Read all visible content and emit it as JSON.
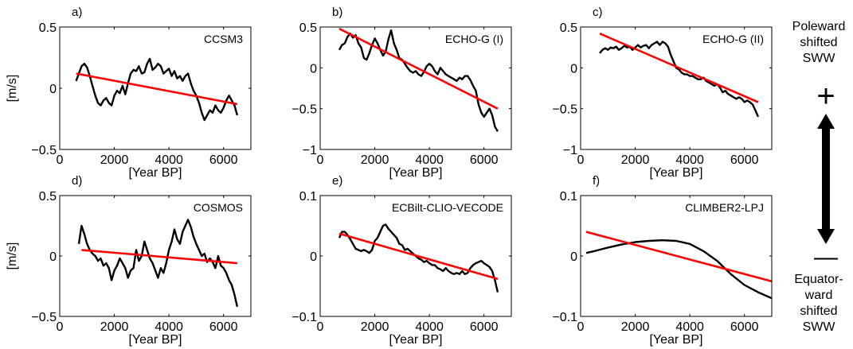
{
  "chart_data": [
    {
      "panel": "a)",
      "title": "CCSM3",
      "type": "line",
      "ylabel": "[m/s]",
      "xlabel": "[Year BP]",
      "xlim": [
        0,
        7000
      ],
      "ylim": [
        -0.5,
        0.5
      ],
      "xticks": [
        0,
        2000,
        4000,
        6000
      ],
      "yticks": [
        -0.5,
        0,
        0.5
      ],
      "xtick_labels": [
        "0",
        "2000",
        "4000",
        "6000"
      ],
      "ytick_labels": [
        "−0.5",
        "0",
        "0.5"
      ],
      "series": [
        {
          "color": "#000000",
          "x": [
            600,
            700,
            800,
            900,
            1000,
            1100,
            1200,
            1300,
            1400,
            1500,
            1600,
            1700,
            1800,
            1900,
            2000,
            2100,
            2200,
            2300,
            2400,
            2500,
            2600,
            2700,
            2800,
            2900,
            3000,
            3100,
            3200,
            3300,
            3400,
            3500,
            3600,
            3700,
            3800,
            3900,
            4000,
            4100,
            4200,
            4300,
            4400,
            4500,
            4600,
            4700,
            4800,
            4900,
            5000,
            5100,
            5200,
            5300,
            5400,
            5500,
            5600,
            5700,
            5800,
            5900,
            6000,
            6100,
            6200,
            6300,
            6400,
            6500
          ],
          "y": [
            0.06,
            0.12,
            0.18,
            0.2,
            0.17,
            0.1,
            0.02,
            -0.06,
            -0.12,
            -0.14,
            -0.1,
            -0.08,
            -0.12,
            -0.14,
            -0.06,
            -0.02,
            -0.04,
            0.02,
            -0.05,
            0.04,
            0.12,
            0.15,
            0.14,
            0.18,
            0.12,
            0.13,
            0.2,
            0.24,
            0.15,
            0.17,
            0.2,
            0.18,
            0.12,
            0.14,
            0.16,
            0.1,
            0.14,
            0.08,
            0.1,
            0.06,
            0.1,
            0.12,
            0.04,
            -0.02,
            -0.06,
            -0.12,
            -0.2,
            -0.26,
            -0.22,
            -0.18,
            -0.2,
            -0.14,
            -0.18,
            -0.2,
            -0.16,
            -0.1,
            -0.06,
            -0.1,
            -0.14,
            -0.22
          ]
        },
        {
          "color": "#ff0000",
          "x": [
            600,
            6500
          ],
          "y": [
            0.12,
            -0.13
          ]
        }
      ]
    },
    {
      "panel": "b)",
      "title": "ECHO-G (I)",
      "type": "line",
      "ylabel": "",
      "xlabel": "[Year BP]",
      "xlim": [
        0,
        7000
      ],
      "ylim": [
        -1,
        0.5
      ],
      "xticks": [
        0,
        2000,
        4000,
        6000
      ],
      "yticks": [
        -1,
        -0.5,
        0,
        0.5
      ],
      "xtick_labels": [
        "0",
        "2000",
        "4000",
        "6000"
      ],
      "ytick_labels": [
        "−1",
        "−0.5",
        "0",
        "0.5"
      ],
      "series": [
        {
          "color": "#000000",
          "x": [
            700,
            800,
            900,
            1000,
            1100,
            1200,
            1300,
            1400,
            1500,
            1600,
            1700,
            1800,
            1900,
            2000,
            2100,
            2200,
            2300,
            2400,
            2500,
            2600,
            2700,
            2800,
            2900,
            3000,
            3100,
            3200,
            3300,
            3400,
            3500,
            3600,
            3700,
            3800,
            3900,
            4000,
            4100,
            4200,
            4300,
            4400,
            4500,
            4600,
            4700,
            4800,
            4900,
            5000,
            5100,
            5200,
            5300,
            5400,
            5500,
            5600,
            5700,
            5800,
            5900,
            6000,
            6100,
            6200,
            6300,
            6400,
            6500
          ],
          "y": [
            0.22,
            0.28,
            0.3,
            0.38,
            0.42,
            0.37,
            0.4,
            0.3,
            0.25,
            0.12,
            0.1,
            0.18,
            0.28,
            0.36,
            0.3,
            0.22,
            0.15,
            0.2,
            0.35,
            0.46,
            0.3,
            0.22,
            0.12,
            0.1,
            0.05,
            0.0,
            -0.04,
            -0.06,
            -0.04,
            -0.08,
            -0.1,
            -0.05,
            0.02,
            0.05,
            0.02,
            -0.04,
            -0.08,
            0.0,
            -0.04,
            -0.08,
            -0.1,
            -0.12,
            -0.14,
            -0.16,
            -0.12,
            -0.14,
            -0.1,
            -0.1,
            -0.15,
            -0.22,
            -0.28,
            -0.45,
            -0.55,
            -0.6,
            -0.55,
            -0.5,
            -0.58,
            -0.72,
            -0.78
          ]
        },
        {
          "color": "#ff0000",
          "x": [
            700,
            6500
          ],
          "y": [
            0.48,
            -0.5
          ]
        }
      ]
    },
    {
      "panel": "c)",
      "title": "ECHO-G (II)",
      "type": "line",
      "ylabel": "",
      "xlabel": "[Year BP]",
      "xlim": [
        0,
        7000
      ],
      "ylim": [
        -1,
        0.5
      ],
      "xticks": [
        0,
        2000,
        4000,
        6000
      ],
      "yticks": [
        -1,
        -0.5,
        0,
        0.5
      ],
      "xtick_labels": [
        "0",
        "2000",
        "4000",
        "6000"
      ],
      "ytick_labels": [
        "−1",
        "−0.5",
        "0",
        "0.5"
      ],
      "series": [
        {
          "color": "#000000",
          "x": [
            700,
            800,
            900,
            1000,
            1100,
            1200,
            1300,
            1400,
            1500,
            1600,
            1700,
            1800,
            1900,
            2000,
            2100,
            2200,
            2300,
            2400,
            2500,
            2600,
            2700,
            2800,
            2900,
            3000,
            3100,
            3200,
            3300,
            3400,
            3500,
            3600,
            3700,
            3800,
            3900,
            4000,
            4100,
            4200,
            4300,
            4400,
            4500,
            4600,
            4700,
            4800,
            4900,
            5000,
            5100,
            5200,
            5300,
            5400,
            5500,
            5600,
            5700,
            5800,
            5900,
            6000,
            6100,
            6200,
            6300,
            6400,
            6500
          ],
          "y": [
            0.18,
            0.22,
            0.24,
            0.22,
            0.25,
            0.24,
            0.26,
            0.22,
            0.24,
            0.27,
            0.25,
            0.26,
            0.22,
            0.25,
            0.28,
            0.25,
            0.27,
            0.28,
            0.24,
            0.28,
            0.3,
            0.32,
            0.28,
            0.32,
            0.3,
            0.26,
            0.16,
            0.08,
            0.0,
            -0.02,
            -0.06,
            -0.08,
            -0.08,
            -0.1,
            -0.1,
            -0.12,
            -0.14,
            -0.14,
            -0.12,
            -0.16,
            -0.18,
            -0.2,
            -0.22,
            -0.2,
            -0.24,
            -0.3,
            -0.28,
            -0.32,
            -0.34,
            -0.36,
            -0.38,
            -0.36,
            -0.38,
            -0.42,
            -0.4,
            -0.42,
            -0.45,
            -0.52,
            -0.6
          ]
        },
        {
          "color": "#ff0000",
          "x": [
            700,
            6500
          ],
          "y": [
            0.42,
            -0.42
          ]
        }
      ]
    },
    {
      "panel": "d)",
      "title": "COSMOS",
      "type": "line",
      "ylabel": "[m/s]",
      "xlabel": "[Year BP]",
      "xlim": [
        0,
        7000
      ],
      "ylim": [
        -0.5,
        0.5
      ],
      "xticks": [
        0,
        2000,
        4000,
        6000
      ],
      "yticks": [
        -0.5,
        0,
        0.5
      ],
      "xtick_labels": [
        "0",
        "2000",
        "4000",
        "6000"
      ],
      "ytick_labels": [
        "−0.5",
        "0",
        "0.5"
      ],
      "series": [
        {
          "color": "#000000",
          "x": [
            700,
            800,
            900,
            1000,
            1100,
            1200,
            1300,
            1400,
            1500,
            1600,
            1700,
            1800,
            1900,
            2000,
            2100,
            2200,
            2300,
            2400,
            2500,
            2600,
            2700,
            2800,
            2900,
            3000,
            3100,
            3200,
            3300,
            3400,
            3500,
            3600,
            3700,
            3800,
            3900,
            4000,
            4100,
            4200,
            4300,
            4400,
            4500,
            4600,
            4700,
            4800,
            4900,
            5000,
            5100,
            5200,
            5300,
            5400,
            5500,
            5600,
            5700,
            5800,
            5900,
            6000,
            6100,
            6200,
            6300,
            6400,
            6500
          ],
          "y": [
            0.1,
            0.25,
            0.18,
            0.1,
            0.05,
            0.02,
            0.0,
            -0.04,
            -0.02,
            -0.08,
            -0.06,
            -0.1,
            -0.2,
            -0.12,
            -0.08,
            -0.02,
            -0.06,
            -0.1,
            -0.18,
            -0.12,
            -0.1,
            0.05,
            -0.04,
            0.0,
            0.12,
            0.05,
            -0.02,
            -0.06,
            -0.12,
            -0.18,
            -0.1,
            -0.14,
            -0.06,
            0.05,
            0.12,
            0.22,
            0.14,
            0.1,
            0.2,
            0.25,
            0.3,
            0.24,
            0.16,
            0.1,
            0.05,
            0.0,
            0.02,
            -0.05,
            -0.02,
            -0.05,
            -0.1,
            0.0,
            -0.08,
            -0.1,
            -0.14,
            -0.2,
            -0.24,
            -0.32,
            -0.42
          ]
        },
        {
          "color": "#ff0000",
          "x": [
            800,
            6500
          ],
          "y": [
            0.05,
            -0.06
          ]
        }
      ]
    },
    {
      "panel": "e)",
      "title": "ECBilt-CLIO-VECODE",
      "type": "line",
      "ylabel": "",
      "xlabel": "[Year BP]",
      "xlim": [
        0,
        7000
      ],
      "ylim": [
        -0.1,
        0.1
      ],
      "xticks": [
        0,
        2000,
        4000,
        6000
      ],
      "yticks": [
        -0.1,
        0,
        0.1
      ],
      "xtick_labels": [
        "0",
        "2000",
        "4000",
        "6000"
      ],
      "ytick_labels": [
        "−0.1",
        "0",
        "0.1"
      ],
      "series": [
        {
          "color": "#000000",
          "x": [
            700,
            800,
            900,
            1000,
            1100,
            1200,
            1300,
            1400,
            1500,
            1600,
            1700,
            1800,
            1900,
            2000,
            2100,
            2200,
            2300,
            2400,
            2500,
            2600,
            2700,
            2800,
            2900,
            3000,
            3100,
            3200,
            3300,
            3400,
            3500,
            3600,
            3700,
            3800,
            3900,
            4000,
            4100,
            4200,
            4300,
            4400,
            4500,
            4600,
            4700,
            4800,
            4900,
            5000,
            5100,
            5200,
            5300,
            5400,
            5500,
            5600,
            5700,
            5800,
            5900,
            6000,
            6100,
            6200,
            6300,
            6400,
            6500
          ],
          "y": [
            0.03,
            0.04,
            0.04,
            0.035,
            0.028,
            0.02,
            0.012,
            0.01,
            0.008,
            0.01,
            0.008,
            0.005,
            0.01,
            0.025,
            0.03,
            0.04,
            0.05,
            0.052,
            0.045,
            0.04,
            0.035,
            0.03,
            0.02,
            0.018,
            0.01,
            0.012,
            0.008,
            0.004,
            0.0,
            -0.004,
            -0.006,
            -0.01,
            -0.008,
            -0.012,
            -0.015,
            -0.015,
            -0.02,
            -0.022,
            -0.025,
            -0.02,
            -0.025,
            -0.028,
            -0.03,
            -0.028,
            -0.03,
            -0.025,
            -0.03,
            -0.028,
            -0.02,
            -0.015,
            -0.012,
            -0.01,
            -0.008,
            -0.012,
            -0.015,
            -0.018,
            -0.025,
            -0.04,
            -0.06
          ]
        },
        {
          "color": "#ff0000",
          "x": [
            700,
            6500
          ],
          "y": [
            0.037,
            -0.038
          ]
        }
      ]
    },
    {
      "panel": "f)",
      "title": "CLIMBER2-LPJ",
      "type": "line",
      "ylabel": "",
      "xlabel": "[Year BP]",
      "xlim": [
        0,
        7000
      ],
      "ylim": [
        -0.1,
        0.1
      ],
      "xticks": [
        0,
        2000,
        4000,
        6000
      ],
      "yticks": [
        -0.1,
        0,
        0.1
      ],
      "xtick_labels": [
        "0",
        "2000",
        "4000",
        "6000"
      ],
      "ytick_labels": [
        "−0.1",
        "0",
        "0.1"
      ],
      "series": [
        {
          "color": "#000000",
          "x": [
            200,
            500,
            1000,
            1500,
            2000,
            2500,
            3000,
            3500,
            4000,
            4500,
            5000,
            5500,
            6000,
            6500,
            7000
          ],
          "y": [
            0.005,
            0.008,
            0.014,
            0.019,
            0.023,
            0.025,
            0.026,
            0.025,
            0.02,
            0.008,
            -0.008,
            -0.03,
            -0.048,
            -0.06,
            -0.07
          ]
        },
        {
          "color": "#ff0000",
          "x": [
            200,
            7000
          ],
          "y": [
            0.04,
            -0.042
          ]
        }
      ]
    }
  ],
  "side_legend": {
    "top_label": [
      "Poleward",
      "shifted",
      "SWW"
    ],
    "plus_symbol": "+",
    "minus_symbol": "—",
    "bottom_label": [
      "Equator-",
      "ward",
      "shifted",
      "SWW"
    ]
  }
}
